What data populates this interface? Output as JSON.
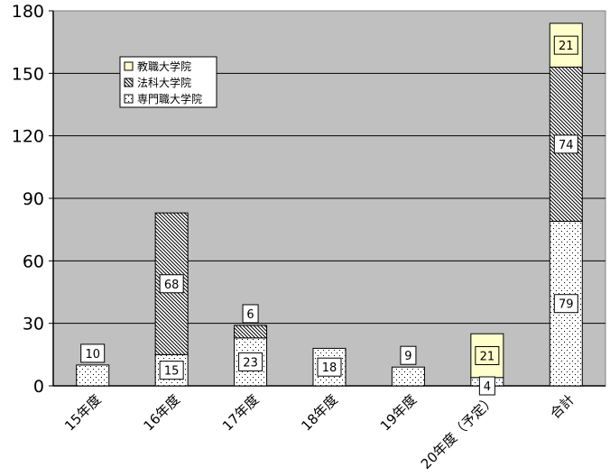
{
  "chart_data": {
    "type": "bar",
    "stacked": true,
    "categories": [
      "15年度",
      "16年度",
      "17年度",
      "18年度",
      "19年度",
      "20年度（予定）",
      "合計"
    ],
    "series": [
      {
        "name": "専門職大学院",
        "values": [
          10,
          15,
          23,
          18,
          9,
          4,
          79
        ],
        "pattern": "dots",
        "fill": "#ffffff"
      },
      {
        "name": "法科大学院",
        "values": [
          0,
          68,
          6,
          0,
          0,
          0,
          74
        ],
        "pattern": "hatch",
        "fill": "#ffffff"
      },
      {
        "name": "教職大学院",
        "values": [
          0,
          0,
          0,
          0,
          0,
          21,
          21
        ],
        "pattern": "solid",
        "fill": "#ffffcc"
      }
    ],
    "legend_order": [
      "教職大学院",
      "法科大学院",
      "専門職大学院"
    ],
    "legend_position": "top-left (inside plot)",
    "yticks": [
      0,
      30,
      60,
      90,
      120,
      150,
      180
    ],
    "ylim": [
      0,
      180
    ],
    "grid": true,
    "colors": {
      "plot_background": "#c0c0c0",
      "gridline": "#000000",
      "bar_outline": "#000000"
    }
  }
}
